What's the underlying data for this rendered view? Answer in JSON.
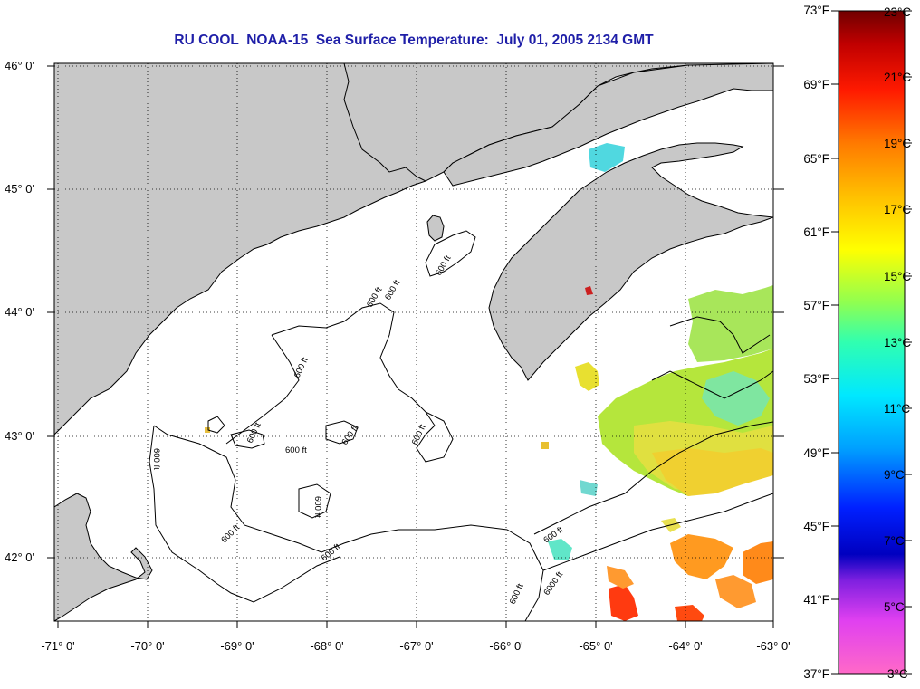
{
  "title": "RU COOL  NOAA-15  Sea Surface Temperature:  July 01, 2005 2134 GMT",
  "map": {
    "lon_labels": [
      "-71° 0'",
      "-70° 0'",
      "-69° 0'",
      "-68° 0'",
      "-67° 0'",
      "-66° 0'",
      "-65° 0'",
      "-64° 0'",
      "-63° 0'"
    ],
    "lat_labels": [
      "46° 0'",
      "45° 0'",
      "44° 0'",
      "43° 0'",
      "42° 0'"
    ],
    "contour_labels": [
      "600 ft",
      "600 ft",
      "600 ft",
      "600 ft",
      "600 ft",
      "600 ft",
      "600 ft",
      "600 ft",
      "600 ft",
      "600 ft",
      "600 ft",
      "600 ft",
      "6000 ft",
      "600 ft",
      "600 ft"
    ],
    "land_color": "#c8c8c8",
    "ocean_color": "#ffffff",
    "coast_color": "#000000"
  },
  "colorbar": {
    "f_labels": [
      "73°F",
      "69°F",
      "65°F",
      "61°F",
      "57°F",
      "53°F",
      "49°F",
      "45°F",
      "41°F",
      "37°F"
    ],
    "c_labels": [
      "23°C",
      "21°C",
      "19°C",
      "17°C",
      "15°C",
      "13°C",
      "11°C",
      "9°C",
      "7°C",
      "5°C",
      "3°C"
    ],
    "colors": [
      "#7a0000",
      "#cc0000",
      "#ff2a00",
      "#ff8a00",
      "#ffd000",
      "#ffff00",
      "#c0ff30",
      "#40ffa0",
      "#00ffff",
      "#00a0ff",
      "#0040ff",
      "#0000c0",
      "#8020ff",
      "#ff40ff",
      "#ff69c8"
    ]
  }
}
